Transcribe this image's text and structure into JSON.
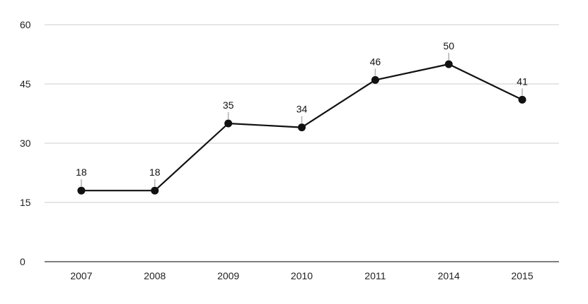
{
  "chart_data": {
    "type": "line",
    "title": "",
    "xlabel": "",
    "ylabel": "",
    "categories": [
      "2007",
      "2008",
      "2009",
      "2010",
      "2011",
      "2014",
      "2015"
    ],
    "series": [
      {
        "values": [
          18,
          18,
          35,
          34,
          46,
          50,
          41
        ]
      }
    ],
    "ylim": [
      0,
      60
    ],
    "yticks": [
      "0",
      "15",
      "30",
      "45",
      "60"
    ],
    "data_labels": [
      "18",
      "18",
      "35",
      "34",
      "46",
      "50",
      "41"
    ],
    "grid": true,
    "legend": "none",
    "colors": {
      "line": "#111111",
      "marker": "#111111",
      "grid": "#cccccc",
      "axis": "#333333",
      "leader": "#b0b0b0"
    }
  }
}
